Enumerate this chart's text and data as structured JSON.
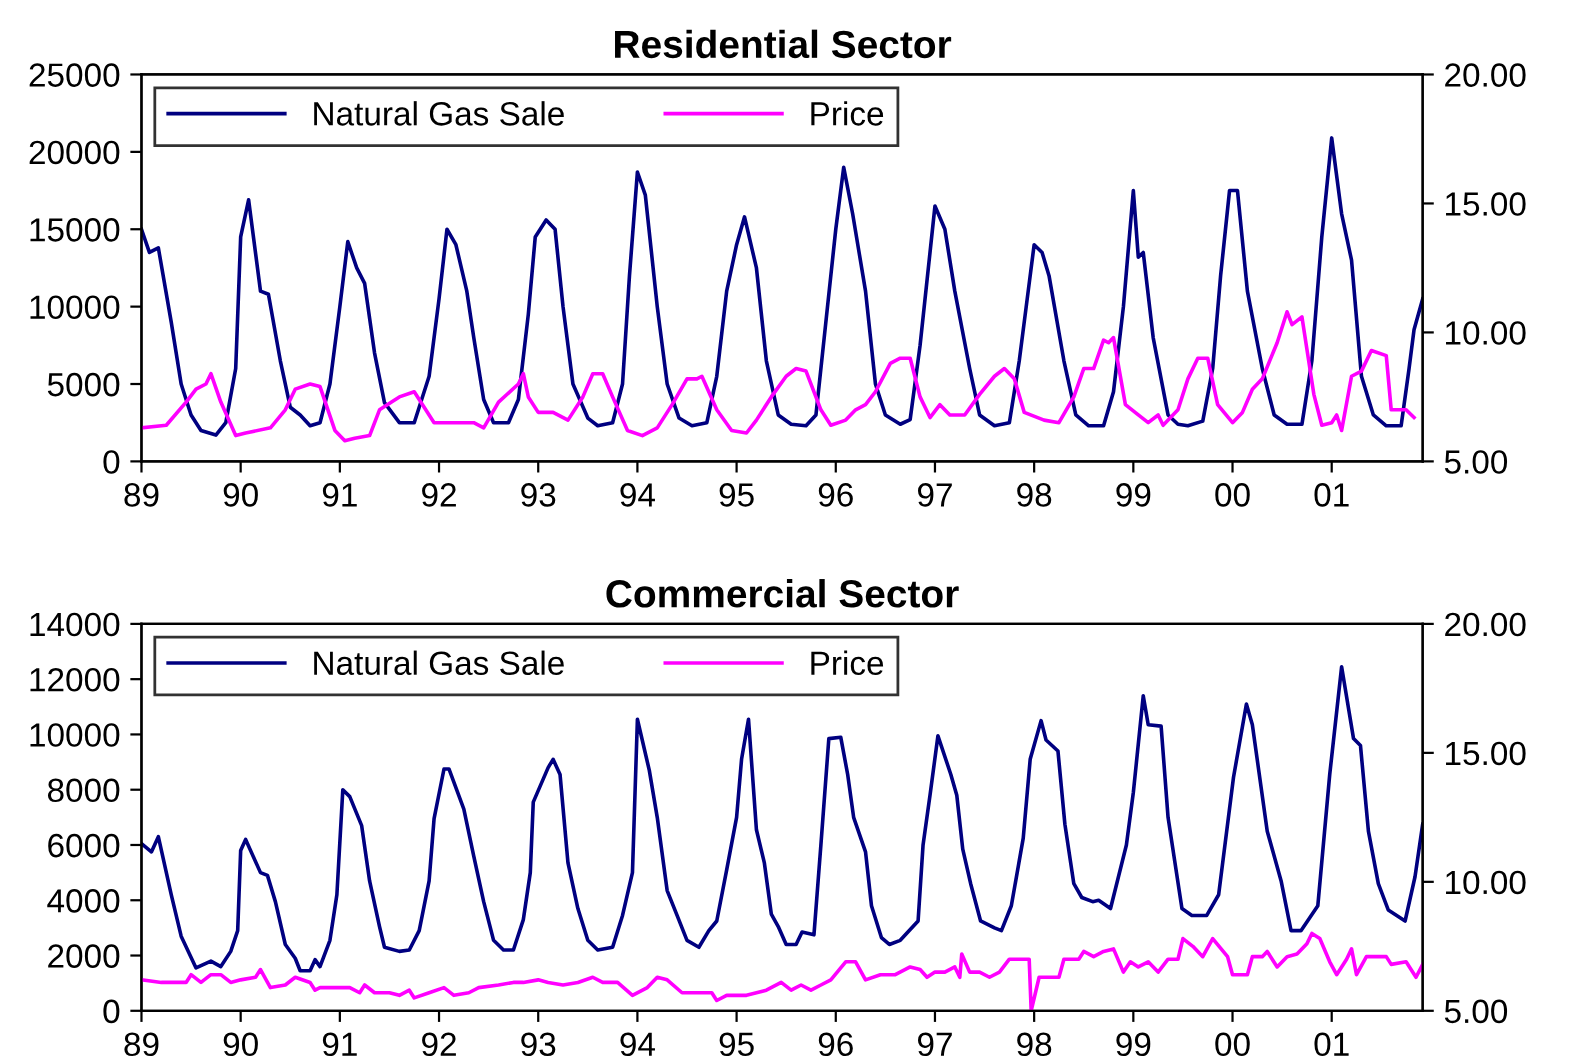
{
  "chart_data": [
    {
      "type": "line",
      "title": "Residential Sector",
      "legend": "top left",
      "grid": false,
      "xlim": [
        1989,
        2001.917
      ],
      "xticks": [
        {
          "value": 1989,
          "label": "89"
        },
        {
          "value": 1990,
          "label": "90"
        },
        {
          "value": 1991,
          "label": "91"
        },
        {
          "value": 1992,
          "label": "92"
        },
        {
          "value": 1993,
          "label": "93"
        },
        {
          "value": 1994,
          "label": "94"
        },
        {
          "value": 1995,
          "label": "95"
        },
        {
          "value": 1996,
          "label": "96"
        },
        {
          "value": 1997,
          "label": "97"
        },
        {
          "value": 1998,
          "label": "98"
        },
        {
          "value": 1999,
          "label": "99"
        },
        {
          "value": 2000,
          "label": "00"
        },
        {
          "value": 2001,
          "label": "01"
        }
      ],
      "ylim": [
        0,
        25000
      ],
      "yticks": [
        0,
        5000,
        10000,
        15000,
        20000,
        25000
      ],
      "y2lim": [
        5,
        20
      ],
      "y2ticks": [
        {
          "value": 5,
          "label": "5.00"
        },
        {
          "value": 10,
          "label": "10.00"
        },
        {
          "value": 15,
          "label": "15.00"
        },
        {
          "value": 20,
          "label": "20.00"
        }
      ],
      "series": [
        {
          "name": "Natural Gas Sale",
          "color": "#000080",
          "axis": "y",
          "x": [
            1989.0,
            1989.08,
            1989.17,
            1989.3,
            1989.4,
            1989.5,
            1989.6,
            1989.75,
            1989.85,
            1989.95,
            1990.0,
            1990.08,
            1990.2,
            1990.28,
            1990.4,
            1990.5,
            1990.6,
            1990.7,
            1990.8,
            1990.9,
            1991.0,
            1991.08,
            1991.17,
            1991.25,
            1991.35,
            1991.45,
            1991.6,
            1991.75,
            1991.9,
            1992.0,
            1992.08,
            1992.17,
            1992.28,
            1992.35,
            1992.45,
            1992.55,
            1992.7,
            1992.8,
            1992.9,
            1992.97,
            1993.08,
            1993.17,
            1993.25,
            1993.35,
            1993.5,
            1993.6,
            1993.75,
            1993.85,
            1993.92,
            1994.0,
            1994.08,
            1994.2,
            1994.3,
            1994.42,
            1994.55,
            1994.7,
            1994.8,
            1994.9,
            1995.0,
            1995.08,
            1995.2,
            1995.3,
            1995.42,
            1995.55,
            1995.7,
            1995.8,
            1995.9,
            1996.0,
            1996.08,
            1996.17,
            1996.3,
            1996.4,
            1996.5,
            1996.65,
            1996.75,
            1996.85,
            1996.95,
            1997.0,
            1997.1,
            1997.2,
            1997.35,
            1997.45,
            1997.6,
            1997.75,
            1997.85,
            1997.92,
            1998.0,
            1998.08,
            1998.15,
            1998.3,
            1998.42,
            1998.55,
            1998.7,
            1998.8,
            1998.9,
            1999.0,
            1999.05,
            1999.1,
            1999.2,
            1999.35,
            1999.45,
            1999.55,
            1999.7,
            1999.8,
            1999.88,
            1999.97,
            2000.05,
            2000.15,
            2000.3,
            2000.42,
            2000.55,
            2000.7,
            2000.8,
            2000.9,
            2001.0,
            2001.1,
            2001.2,
            2001.3,
            2001.42,
            2001.55,
            2001.7,
            2001.78,
            2001.83,
            2001.917
          ],
          "values": [
            15000,
            13500,
            13800,
            9000,
            5000,
            3000,
            2000,
            1700,
            2500,
            6000,
            14500,
            16900,
            11000,
            10800,
            6500,
            3500,
            3000,
            2300,
            2500,
            5000,
            10000,
            14200,
            12500,
            11500,
            7000,
            3800,
            2500,
            2500,
            5500,
            10500,
            15000,
            14000,
            11000,
            8000,
            4000,
            2500,
            2500,
            4000,
            9500,
            14500,
            15600,
            15000,
            10000,
            5000,
            2800,
            2300,
            2500,
            5000,
            12000,
            18700,
            17200,
            10000,
            5000,
            2800,
            2300,
            2500,
            5500,
            11000,
            14000,
            15800,
            12500,
            6500,
            3000,
            2400,
            2300,
            3000,
            9000,
            15000,
            19000,
            16000,
            11000,
            5000,
            3000,
            2400,
            2700,
            7500,
            13500,
            16500,
            15000,
            11000,
            6000,
            3000,
            2300,
            2500,
            6500,
            10000,
            14000,
            13500,
            12000,
            6500,
            3000,
            2300,
            2300,
            4500,
            10000,
            17500,
            13200,
            13500,
            8000,
            3000,
            2400,
            2300,
            2600,
            6000,
            12000,
            17500,
            17500,
            11000,
            6000,
            3000,
            2400,
            2400,
            6500,
            14500,
            20900,
            16000,
            13000,
            5500,
            3000,
            2300,
            2300,
            6000,
            8500,
            10500
          ]
        },
        {
          "name": "Price",
          "color": "#ff00ff",
          "axis": "y2",
          "x": [
            1989.0,
            1989.25,
            1989.45,
            1989.55,
            1989.65,
            1989.7,
            1989.8,
            1989.95,
            1990.05,
            1990.3,
            1990.45,
            1990.55,
            1990.7,
            1990.8,
            1990.95,
            1991.05,
            1991.15,
            1991.3,
            1991.4,
            1991.6,
            1991.75,
            1991.8,
            1991.95,
            1992.2,
            1992.35,
            1992.45,
            1992.6,
            1992.8,
            1992.85,
            1992.9,
            1993.0,
            1993.15,
            1993.3,
            1993.45,
            1993.55,
            1993.65,
            1993.75,
            1993.9,
            1994.05,
            1994.2,
            1994.35,
            1994.5,
            1994.6,
            1994.65,
            1994.8,
            1994.95,
            1995.1,
            1995.2,
            1995.35,
            1995.5,
            1995.6,
            1995.7,
            1995.85,
            1995.95,
            1996.1,
            1996.2,
            1996.3,
            1996.4,
            1996.55,
            1996.65,
            1996.75,
            1996.85,
            1996.95,
            1997.05,
            1997.15,
            1997.3,
            1997.45,
            1997.6,
            1997.7,
            1997.8,
            1997.9,
            1998.1,
            1998.25,
            1998.4,
            1998.5,
            1998.6,
            1998.7,
            1998.75,
            1998.8,
            1998.92,
            1999.05,
            1999.15,
            1999.25,
            1999.3,
            1999.45,
            1999.55,
            1999.65,
            1999.75,
            1999.85,
            2000.0,
            2000.1,
            2000.2,
            2000.3,
            2000.45,
            2000.55,
            2000.6,
            2000.7,
            2000.82,
            2000.9,
            2001.0,
            2001.05,
            2001.1,
            2001.2,
            2001.3,
            2001.4,
            2001.55,
            2001.6,
            2001.75,
            2001.83
          ],
          "values": [
            6.3,
            6.4,
            7.3,
            7.8,
            8.0,
            8.4,
            7.3,
            6.0,
            6.1,
            6.3,
            7.0,
            7.8,
            8.0,
            7.9,
            6.2,
            5.8,
            5.9,
            6.0,
            7.0,
            7.5,
            7.7,
            7.4,
            6.5,
            6.5,
            6.5,
            6.3,
            7.3,
            8.0,
            8.4,
            7.5,
            6.9,
            6.9,
            6.6,
            7.5,
            8.4,
            8.4,
            7.5,
            6.2,
            6.0,
            6.3,
            7.2,
            8.2,
            8.2,
            8.3,
            7.0,
            6.2,
            6.1,
            6.6,
            7.5,
            8.3,
            8.6,
            8.5,
            7.0,
            6.4,
            6.6,
            7.0,
            7.2,
            7.7,
            8.8,
            9.0,
            9.0,
            7.5,
            6.7,
            7.2,
            6.8,
            6.8,
            7.6,
            8.3,
            8.6,
            8.2,
            6.9,
            6.6,
            6.5,
            7.5,
            8.6,
            8.6,
            9.7,
            9.6,
            9.8,
            7.2,
            6.8,
            6.5,
            6.8,
            6.4,
            7.0,
            8.2,
            9.0,
            9.0,
            7.2,
            6.5,
            6.9,
            7.8,
            8.2,
            9.6,
            10.8,
            10.3,
            10.6,
            7.6,
            6.4,
            6.5,
            6.8,
            6.2,
            8.3,
            8.5,
            9.3,
            9.1,
            7.0,
            7.0,
            6.7
          ]
        }
      ]
    },
    {
      "type": "line",
      "title": "Commercial Sector",
      "legend": "top left",
      "grid": false,
      "xlim": [
        1989,
        2001.917
      ],
      "xticks": [
        {
          "value": 1989,
          "label": "89"
        },
        {
          "value": 1990,
          "label": "90"
        },
        {
          "value": 1991,
          "label": "91"
        },
        {
          "value": 1992,
          "label": "92"
        },
        {
          "value": 1993,
          "label": "93"
        },
        {
          "value": 1994,
          "label": "94"
        },
        {
          "value": 1995,
          "label": "95"
        },
        {
          "value": 1996,
          "label": "96"
        },
        {
          "value": 1997,
          "label": "97"
        },
        {
          "value": 1998,
          "label": "98"
        },
        {
          "value": 1999,
          "label": "99"
        },
        {
          "value": 2000,
          "label": "00"
        },
        {
          "value": 2001,
          "label": "01"
        }
      ],
      "ylim": [
        0,
        14000
      ],
      "yticks": [
        0,
        2000,
        4000,
        6000,
        8000,
        10000,
        12000,
        14000
      ],
      "y2lim": [
        5,
        20
      ],
      "y2ticks": [
        {
          "value": 5,
          "label": "5.00"
        },
        {
          "value": 10,
          "label": "10.00"
        },
        {
          "value": 15,
          "label": "15.00"
        },
        {
          "value": 20,
          "label": "20.00"
        }
      ],
      "series": [
        {
          "name": "Natural Gas Sale",
          "color": "#000080",
          "axis": "y",
          "x": [
            1989.0,
            1989.1,
            1989.17,
            1989.3,
            1989.4,
            1989.55,
            1989.7,
            1989.8,
            1989.9,
            1989.97,
            1990.0,
            1990.05,
            1990.2,
            1990.27,
            1990.35,
            1990.45,
            1990.55,
            1990.6,
            1990.7,
            1990.75,
            1990.8,
            1990.9,
            1990.97,
            1991.03,
            1991.1,
            1991.22,
            1991.3,
            1991.4,
            1991.45,
            1991.6,
            1991.7,
            1991.8,
            1991.9,
            1991.95,
            1992.05,
            1992.1,
            1992.25,
            1992.35,
            1992.45,
            1992.55,
            1992.65,
            1992.75,
            1992.85,
            1992.92,
            1992.95,
            1993.1,
            1993.15,
            1993.22,
            1993.3,
            1993.4,
            1993.5,
            1993.6,
            1993.75,
            1993.85,
            1993.95,
            1994.0,
            1994.12,
            1994.2,
            1994.3,
            1994.4,
            1994.5,
            1994.62,
            1994.72,
            1994.8,
            1994.9,
            1995.0,
            1995.05,
            1995.12,
            1995.2,
            1995.28,
            1995.35,
            1995.42,
            1995.5,
            1995.6,
            1995.66,
            1995.78,
            1995.85,
            1995.93,
            1996.05,
            1996.12,
            1996.18,
            1996.3,
            1996.36,
            1996.46,
            1996.54,
            1996.65,
            1996.83,
            1996.88,
            1996.95,
            1997.03,
            1997.16,
            1997.22,
            1997.28,
            1997.36,
            1997.46,
            1997.6,
            1997.67,
            1997.77,
            1997.89,
            1997.96,
            1998.07,
            1998.12,
            1998.24,
            1998.31,
            1998.4,
            1998.48,
            1998.59,
            1998.65,
            1998.77,
            1998.93,
            1999.0,
            1999.1,
            1999.15,
            1999.28,
            1999.35,
            1999.49,
            1999.59,
            1999.74,
            1999.86,
            2000.01,
            2000.14,
            2000.2,
            2000.35,
            2000.49,
            2000.59,
            2000.69,
            2000.86,
            2000.98,
            2001.1,
            2001.22,
            2001.29,
            2001.37,
            2001.47,
            2001.57,
            2001.74,
            2001.84,
            2001.917
          ],
          "values": [
            6050,
            5750,
            6300,
            4200,
            2700,
            1550,
            1800,
            1600,
            2150,
            2900,
            5800,
            6200,
            5000,
            4900,
            3950,
            2400,
            1900,
            1450,
            1450,
            1850,
            1600,
            2550,
            4200,
            8000,
            7750,
            6700,
            4700,
            3050,
            2300,
            2150,
            2200,
            2900,
            4700,
            6950,
            8750,
            8750,
            7300,
            5600,
            3950,
            2550,
            2200,
            2200,
            3300,
            5000,
            7550,
            8800,
            9100,
            8550,
            5350,
            3700,
            2550,
            2200,
            2300,
            3450,
            5000,
            10550,
            8700,
            7000,
            4350,
            3450,
            2550,
            2300,
            2900,
            3250,
            5100,
            7000,
            9100,
            10550,
            6550,
            5350,
            3500,
            3050,
            2400,
            2400,
            2850,
            2750,
            6000,
            9850,
            9900,
            8550,
            7000,
            5750,
            3800,
            2650,
            2400,
            2550,
            3250,
            6000,
            7800,
            9950,
            8550,
            7800,
            5850,
            4600,
            3250,
            3000,
            2900,
            3800,
            6250,
            9100,
            10500,
            9800,
            9400,
            6750,
            4600,
            4100,
            3950,
            4000,
            3700,
            6000,
            7900,
            11400,
            10350,
            10300,
            7000,
            3700,
            3450,
            3450,
            4200,
            8450,
            11100,
            10350,
            6500,
            4700,
            2900,
            2900,
            3800,
            8550,
            12450,
            9850,
            9600,
            6500,
            4600,
            3650,
            3250,
            4850,
            6750
          ]
        },
        {
          "name": "Price",
          "color": "#ff00ff",
          "axis": "y2",
          "x": [
            1989.0,
            1989.2,
            1989.45,
            1989.5,
            1989.6,
            1989.7,
            1989.8,
            1989.9,
            1990.0,
            1990.15,
            1990.2,
            1990.3,
            1990.45,
            1990.55,
            1990.7,
            1990.75,
            1990.8,
            1990.95,
            1991.1,
            1991.2,
            1991.25,
            1991.35,
            1991.5,
            1991.6,
            1991.7,
            1991.75,
            1991.9,
            1992.05,
            1992.15,
            1992.3,
            1992.4,
            1992.6,
            1992.75,
            1992.85,
            1993.0,
            1993.1,
            1993.25,
            1993.4,
            1993.55,
            1993.65,
            1993.8,
            1993.95,
            1994.1,
            1994.2,
            1994.3,
            1994.45,
            1994.6,
            1994.75,
            1994.8,
            1994.9,
            1995.1,
            1995.3,
            1995.45,
            1995.55,
            1995.65,
            1995.75,
            1995.85,
            1995.95,
            1996.1,
            1996.2,
            1996.3,
            1996.45,
            1996.6,
            1996.75,
            1996.85,
            1996.92,
            1997.0,
            1997.1,
            1997.2,
            1997.25,
            1997.27,
            1997.35,
            1997.45,
            1997.55,
            1997.65,
            1997.75,
            1997.95,
            1997.97,
            1998.05,
            1998.15,
            1998.25,
            1998.3,
            1998.45,
            1998.5,
            1998.6,
            1998.7,
            1998.8,
            1998.9,
            1998.97,
            1999.05,
            1999.15,
            1999.25,
            1999.35,
            1999.45,
            1999.5,
            1999.6,
            1999.7,
            1999.8,
            1999.95,
            2000.0,
            2000.15,
            2000.2,
            2000.3,
            2000.35,
            2000.45,
            2000.55,
            2000.65,
            2000.75,
            2000.8,
            2000.88,
            2000.98,
            2001.05,
            2001.15,
            2001.2,
            2001.25,
            2001.35,
            2001.55,
            2001.6,
            2001.75,
            2001.85,
            2001.917
          ],
          "values": [
            6.2,
            6.1,
            6.1,
            6.4,
            6.1,
            6.4,
            6.4,
            6.1,
            6.2,
            6.3,
            6.6,
            5.9,
            6.0,
            6.3,
            6.1,
            5.8,
            5.9,
            5.9,
            5.9,
            5.7,
            6.0,
            5.7,
            5.7,
            5.6,
            5.8,
            5.5,
            5.7,
            5.9,
            5.6,
            5.7,
            5.9,
            6.0,
            6.1,
            6.1,
            6.2,
            6.1,
            6.0,
            6.1,
            6.3,
            6.1,
            6.1,
            5.6,
            5.9,
            6.3,
            6.2,
            5.7,
            5.7,
            5.7,
            5.4,
            5.6,
            5.6,
            5.8,
            6.1,
            5.8,
            6.0,
            5.8,
            6.0,
            6.2,
            6.9,
            6.9,
            6.2,
            6.4,
            6.4,
            6.7,
            6.6,
            6.3,
            6.5,
            6.5,
            6.7,
            6.3,
            7.2,
            6.5,
            6.5,
            6.3,
            6.5,
            7.0,
            7.0,
            5.0,
            6.3,
            6.3,
            6.3,
            7.0,
            7.0,
            7.3,
            7.1,
            7.3,
            7.4,
            6.5,
            6.9,
            6.7,
            6.9,
            6.5,
            7.0,
            7.0,
            7.8,
            7.5,
            7.1,
            7.8,
            7.1,
            6.4,
            6.4,
            7.1,
            7.1,
            7.3,
            6.7,
            7.1,
            7.2,
            7.6,
            8.0,
            7.8,
            6.9,
            6.4,
            7.0,
            7.4,
            6.4,
            7.1,
            7.1,
            6.8,
            6.9,
            6.3,
            6.8
          ]
        }
      ]
    }
  ]
}
